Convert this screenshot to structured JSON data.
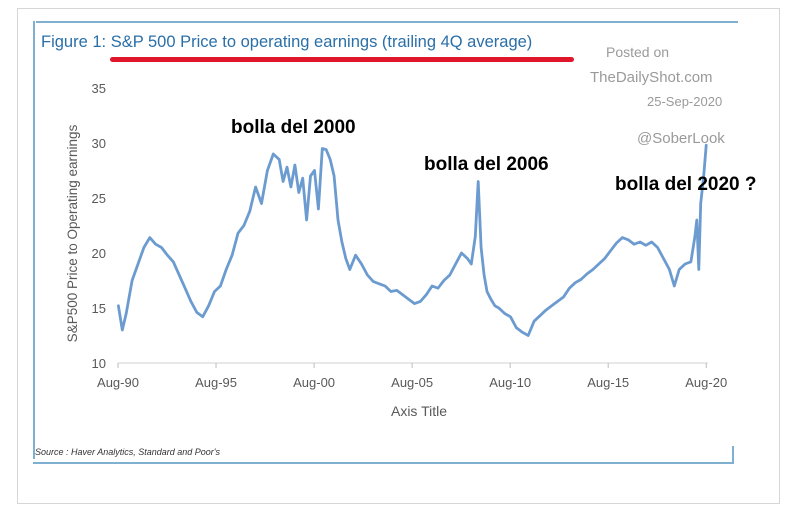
{
  "title": "Figure 1: S&P 500 Price to operating earnings (trailing 4Q average)",
  "watermark": {
    "line1": "Posted on",
    "line2": "TheDailyShot.com",
    "line3": "25-Sep-2020",
    "line4": "@SoberLook"
  },
  "annotations": [
    "bolla del 2000",
    "bolla del 2006",
    "bolla del 2020 ?"
  ],
  "source": "Source : Haver Analytics, Standard and Poor's",
  "colors": {
    "line": "#6c9bd0",
    "title": "#2a6fa8",
    "underline": "#e0162b",
    "frame": "#7fb0cf"
  },
  "chart_data": {
    "type": "line",
    "xlabel": "Axis Title",
    "ylabel": "S&P500 Price to Operating earnings",
    "ylim": [
      10,
      35
    ],
    "yticks": [
      10,
      15,
      20,
      25,
      30,
      35
    ],
    "xlim": [
      1990.58,
      2020.67
    ],
    "xticks": [
      {
        "value": 1990.58,
        "label": "Aug-90"
      },
      {
        "value": 1995.58,
        "label": "Aug-95"
      },
      {
        "value": 2000.58,
        "label": "Aug-00"
      },
      {
        "value": 2005.58,
        "label": "Aug-05"
      },
      {
        "value": 2010.58,
        "label": "Aug-10"
      },
      {
        "value": 2015.58,
        "label": "Aug-15"
      },
      {
        "value": 2020.58,
        "label": "Aug-20"
      }
    ],
    "grid": false,
    "series": [
      {
        "x": [
          1990.6,
          1990.8,
          1991.0,
          1991.3,
          1991.6,
          1991.9,
          1992.2,
          1992.5,
          1992.8,
          1993.1,
          1993.4,
          1993.7,
          1994.0,
          1994.3,
          1994.6,
          1994.9,
          1995.2,
          1995.5,
          1995.8,
          1996.1,
          1996.4,
          1996.7,
          1997.0,
          1997.3,
          1997.6,
          1997.9,
          1998.2,
          1998.5,
          1998.8,
          1999.0,
          1999.2,
          1999.4,
          1999.6,
          1999.8,
          2000.0,
          2000.2,
          2000.4,
          2000.6,
          2000.8,
          2001.0,
          2001.2,
          2001.4,
          2001.6,
          2001.8,
          2002.0,
          2002.2,
          2002.4,
          2002.7,
          2003.0,
          2003.3,
          2003.6,
          2003.9,
          2004.2,
          2004.5,
          2004.8,
          2005.1,
          2005.4,
          2005.7,
          2006.0,
          2006.3,
          2006.6,
          2006.9,
          2007.2,
          2007.5,
          2007.8,
          2008.1,
          2008.4,
          2008.6,
          2008.8,
          2008.95,
          2009.1,
          2009.25,
          2009.4,
          2009.6,
          2009.8,
          2010.0,
          2010.3,
          2010.6,
          2010.9,
          2011.2,
          2011.5,
          2011.8,
          2012.1,
          2012.4,
          2012.7,
          2013.0,
          2013.3,
          2013.6,
          2013.9,
          2014.2,
          2014.5,
          2014.8,
          2015.1,
          2015.4,
          2015.7,
          2016.0,
          2016.3,
          2016.6,
          2016.9,
          2017.2,
          2017.5,
          2017.8,
          2018.1,
          2018.4,
          2018.7,
          2018.95,
          2019.2,
          2019.5,
          2019.8,
          2020.0,
          2020.1,
          2020.2,
          2020.3,
          2020.45,
          2020.58
        ],
        "y": [
          15.2,
          13.0,
          14.5,
          17.5,
          19.0,
          20.5,
          21.4,
          20.8,
          20.5,
          19.8,
          19.2,
          18.0,
          16.8,
          15.6,
          14.6,
          14.2,
          15.2,
          16.5,
          17.0,
          18.5,
          19.8,
          21.8,
          22.5,
          23.8,
          26.0,
          24.5,
          27.5,
          29.0,
          28.5,
          26.5,
          27.8,
          26.0,
          28.0,
          25.5,
          26.8,
          23.0,
          27.0,
          27.5,
          24.0,
          29.5,
          29.4,
          28.5,
          27.0,
          23.0,
          21.0,
          19.5,
          18.5,
          19.8,
          19.0,
          18.0,
          17.4,
          17.2,
          17.0,
          16.5,
          16.6,
          16.2,
          15.8,
          15.4,
          15.6,
          16.2,
          17.0,
          16.8,
          17.5,
          18.0,
          19.0,
          20.0,
          19.5,
          19.0,
          21.5,
          26.5,
          20.5,
          18.0,
          16.5,
          15.8,
          15.2,
          15.0,
          14.5,
          14.2,
          13.2,
          12.8,
          12.5,
          13.8,
          14.3,
          14.8,
          15.2,
          15.6,
          16.0,
          16.8,
          17.3,
          17.6,
          18.1,
          18.5,
          19.0,
          19.5,
          20.2,
          20.9,
          21.4,
          21.2,
          20.8,
          21.0,
          20.7,
          21.0,
          20.5,
          19.5,
          18.5,
          17.0,
          18.5,
          19.0,
          19.2,
          21.5,
          23.0,
          18.5,
          24.5,
          27.0,
          29.8
        ]
      }
    ]
  }
}
